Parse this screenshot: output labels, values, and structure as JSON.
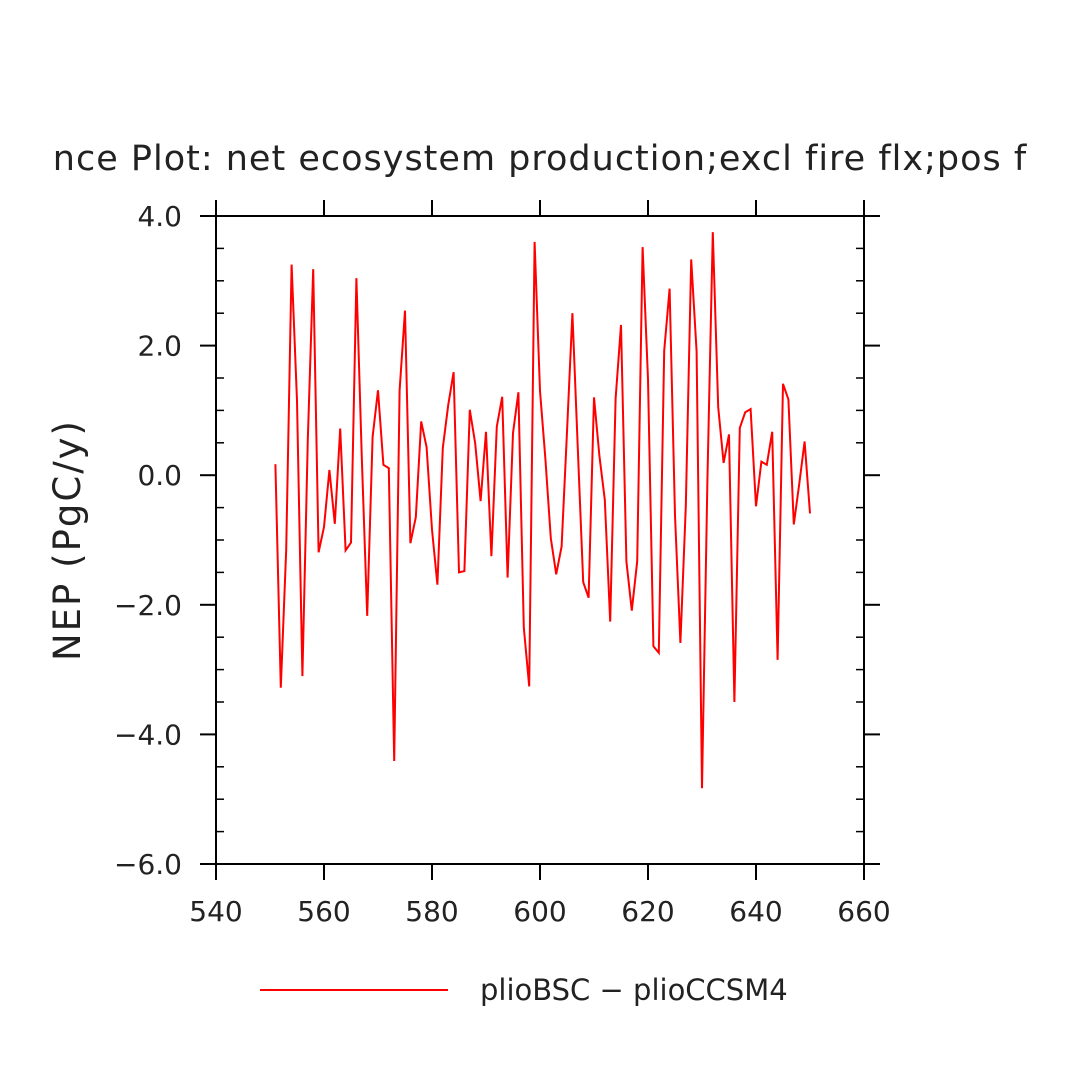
{
  "chart_data": {
    "type": "line",
    "title": "nce Plot: net ecosystem production;excl fire flx;pos f",
    "xlabel": "",
    "ylabel": "NEP  (PgC/y)",
    "xlim": [
      540,
      660
    ],
    "ylim": [
      -6.0,
      4.0
    ],
    "xticks": [
      540,
      560,
      580,
      600,
      620,
      640,
      660
    ],
    "xtick_labels": [
      "540",
      "560",
      "580",
      "600",
      "620",
      "640",
      "660"
    ],
    "yticks": [
      -6,
      -4,
      -2,
      0,
      2,
      4
    ],
    "ytick_labels": [
      "−6.0",
      "−4.0",
      "−2.0",
      "0.0",
      "2.0",
      "4.0"
    ],
    "grid": false,
    "legend_position": "bottom-center",
    "x": [
      551,
      552,
      553,
      554,
      555,
      556,
      557,
      558,
      559,
      560,
      561,
      562,
      563,
      564,
      565,
      566,
      567,
      568,
      569,
      570,
      571,
      572,
      573,
      574,
      575,
      576,
      577,
      578,
      579,
      580,
      581,
      582,
      583,
      584,
      585,
      586,
      587,
      588,
      589,
      590,
      591,
      592,
      593,
      594,
      595,
      596,
      597,
      598,
      599,
      600,
      601,
      602,
      603,
      604,
      605,
      606,
      607,
      608,
      609,
      610,
      611,
      612,
      613,
      614,
      615,
      616,
      617,
      618,
      619,
      620,
      621,
      622,
      623,
      624,
      625,
      626,
      627,
      628,
      629,
      630,
      631,
      632,
      633,
      634,
      635,
      636,
      637,
      638,
      639,
      640,
      641,
      642,
      643,
      644,
      645,
      646,
      647,
      648,
      649,
      650
    ],
    "series": [
      {
        "name": "plioBSC − plioCCSM4",
        "color": "#ff0000",
        "values": [
          0.17,
          -3.28,
          -1.15,
          3.25,
          1.15,
          -3.1,
          0.55,
          3.18,
          -1.19,
          -0.8,
          0.08,
          -0.75,
          0.72,
          -1.16,
          -1.04,
          3.04,
          0.27,
          -2.17,
          0.59,
          1.31,
          0.16,
          0.11,
          -4.41,
          1.31,
          2.54,
          -1.05,
          -0.65,
          0.83,
          0.43,
          -0.84,
          -1.69,
          0.42,
          1.08,
          1.59,
          -1.5,
          -1.48,
          1.01,
          0.49,
          -0.4,
          0.67,
          -1.25,
          0.75,
          1.21,
          -1.58,
          0.65,
          1.28,
          -2.35,
          -3.26,
          3.6,
          1.3,
          0.25,
          -0.97,
          -1.53,
          -1.1,
          0.67,
          2.5,
          0.41,
          -1.65,
          -1.89,
          1.2,
          0.3,
          -0.38,
          -2.26,
          1.18,
          2.32,
          -1.33,
          -2.09,
          -1.33,
          3.52,
          1.48,
          -2.64,
          -2.74,
          1.92,
          2.88,
          -0.62,
          -2.59,
          -0.48,
          3.33,
          1.91,
          -4.83,
          -0.08,
          3.75,
          1.05,
          0.19,
          0.63,
          -3.5,
          0.73,
          0.97,
          1.02,
          -0.48,
          0.21,
          0.16,
          0.67,
          -2.85,
          1.41,
          1.17,
          -0.76,
          -0.14,
          0.52,
          -0.59
        ]
      }
    ]
  }
}
